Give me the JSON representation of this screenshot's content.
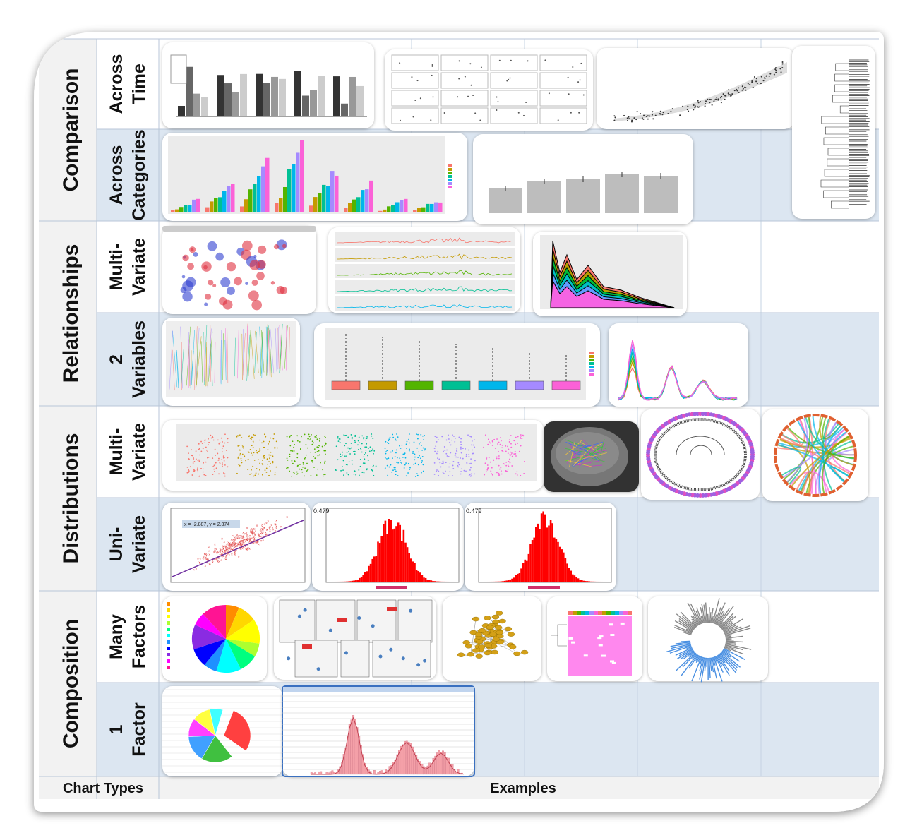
{
  "groups": [
    {
      "label": "Comparison",
      "rows": [
        {
          "label": [
            "Across",
            "Time"
          ]
        },
        {
          "label": [
            "Across",
            "Categories"
          ]
        }
      ]
    },
    {
      "label": "Relationships",
      "rows": [
        {
          "label": [
            "Multi-",
            "Variate"
          ]
        },
        {
          "label": [
            "2",
            "Variables"
          ]
        }
      ]
    },
    {
      "label": "Distributions",
      "rows": [
        {
          "label": [
            "Multi-",
            "Variate"
          ]
        },
        {
          "label": [
            "Uni-",
            "Variate"
          ]
        }
      ]
    },
    {
      "label": "Composition",
      "rows": [
        {
          "label": [
            "Many",
            "Factors"
          ]
        },
        {
          "label": [
            "1",
            "Factor"
          ]
        }
      ]
    }
  ],
  "footer": {
    "chart_types": "Chart Types",
    "examples": "Examples"
  },
  "annotations": {
    "scatter_readout": "x = -2.887, y = 2.374",
    "hist_peak_1": "0.479",
    "hist_peak_2": "0.479"
  }
}
